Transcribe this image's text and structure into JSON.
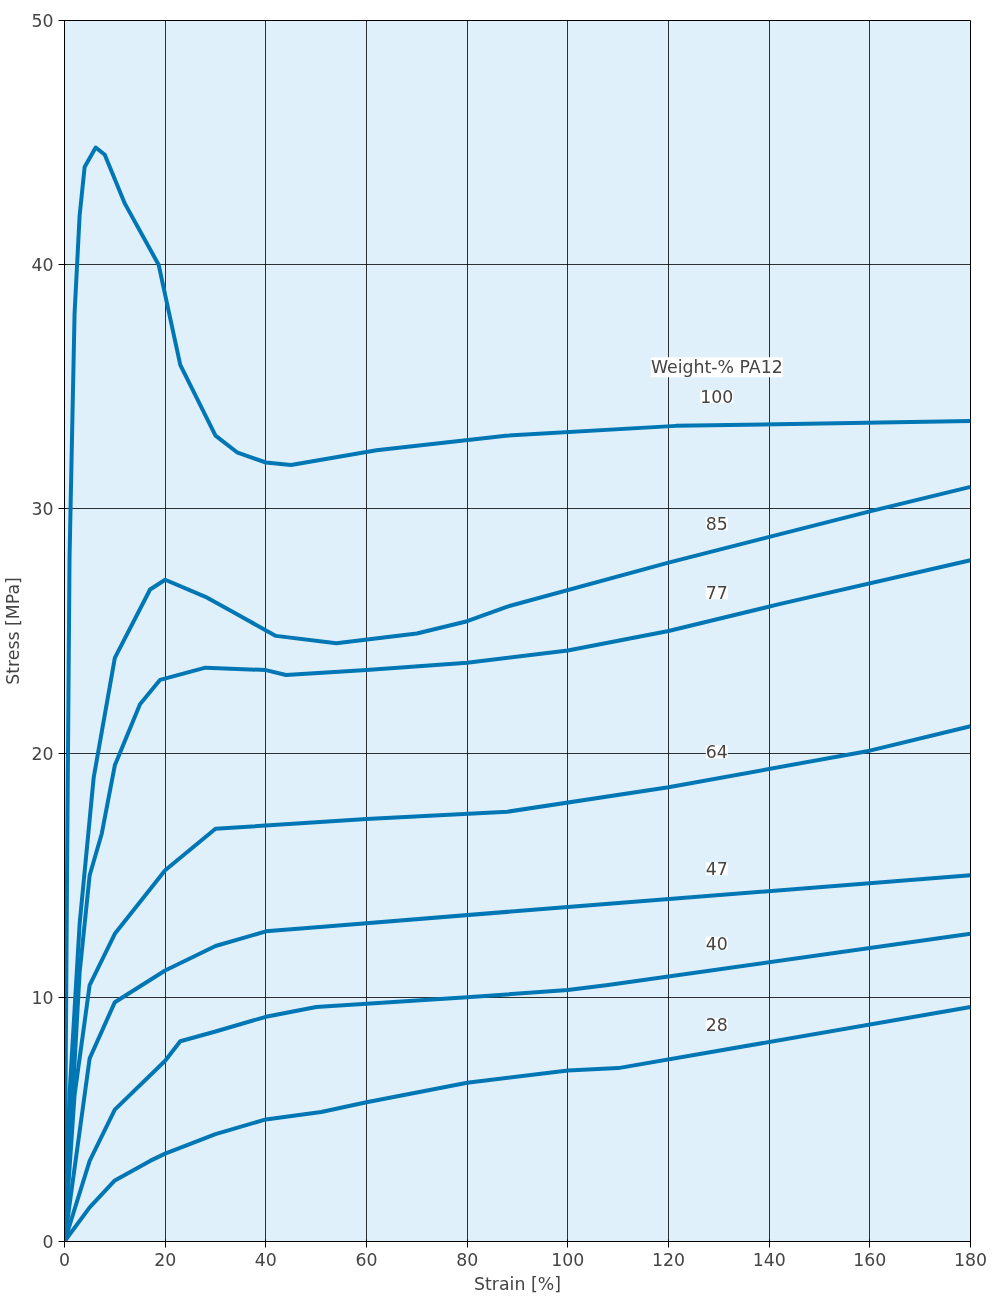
{
  "chart_data": {
    "type": "line",
    "xlabel": "Strain [%]",
    "ylabel": "Stress [MPa]",
    "legend_title": "Weight-% PA12",
    "xlim": [
      0,
      180
    ],
    "ylim": [
      0,
      50
    ],
    "xticks": [
      0,
      20,
      40,
      60,
      80,
      100,
      120,
      140,
      160,
      180
    ],
    "yticks": [
      0,
      10,
      20,
      30,
      40,
      50
    ],
    "grid": true,
    "line_style": "solid",
    "series": [
      {
        "name": "100",
        "color": "#0077b4",
        "x": [
          0,
          0.5,
          1,
          2,
          3,
          4,
          6.2,
          8,
          12,
          18.7,
          23,
          30,
          34.4,
          40,
          45,
          62,
          87.7,
          121.5,
          180
        ],
        "values": [
          0,
          15,
          28,
          38,
          42,
          44,
          44.8,
          44.5,
          42.5,
          40,
          35.9,
          33,
          32.3,
          31.9,
          31.8,
          32.4,
          33,
          33.4,
          33.6
        ]
      },
      {
        "name": "85",
        "color": "#0077b4",
        "x": [
          0,
          1,
          3,
          5.8,
          10,
          17,
          20,
          28,
          35,
          42,
          54,
          70,
          80,
          88,
          120,
          160,
          180
        ],
        "values": [
          0,
          6,
          13,
          19,
          23.9,
          26.7,
          27.1,
          26.4,
          25.6,
          24.8,
          24.5,
          24.9,
          25.4,
          26,
          27.8,
          29.9,
          30.9
        ]
      },
      {
        "name": "77",
        "color": "#0077b4",
        "x": [
          0,
          3,
          5,
          7.4,
          10,
          15,
          19,
          28,
          40,
          44,
          60,
          80,
          100,
          120,
          142,
          180
        ],
        "values": [
          0,
          11,
          15,
          16.7,
          19.5,
          22,
          23,
          23.5,
          23.4,
          23.2,
          23.4,
          23.7,
          24.2,
          25,
          26.1,
          27.9
        ]
      },
      {
        "name": "64",
        "color": "#0077b4",
        "x": [
          0,
          2,
          5,
          10,
          20,
          30,
          60,
          88,
          120,
          160,
          180
        ],
        "values": [
          0,
          6,
          10.5,
          12.6,
          15.2,
          16.9,
          17.3,
          17.6,
          18.6,
          20.1,
          21.1
        ]
      },
      {
        "name": "47",
        "color": "#0077b4",
        "x": [
          0,
          5,
          10,
          20,
          30,
          40,
          52,
          100,
          180
        ],
        "values": [
          0,
          7.5,
          9.8,
          11.1,
          12.1,
          12.7,
          12.9,
          13.7,
          15
        ]
      },
      {
        "name": "40",
        "color": "#0077b4",
        "x": [
          0,
          5,
          10,
          20,
          23,
          30,
          40,
          50,
          80,
          100,
          108,
          180
        ],
        "values": [
          0,
          3.3,
          5.4,
          7.4,
          8.2,
          8.6,
          9.2,
          9.6,
          10,
          10.3,
          10.5,
          12.6
        ]
      },
      {
        "name": "28",
        "color": "#0077b4",
        "x": [
          0,
          5,
          10,
          17,
          20,
          30,
          40,
          51,
          60,
          80,
          100,
          110,
          180
        ],
        "values": [
          0,
          1.4,
          2.5,
          3.3,
          3.6,
          4.4,
          5,
          5.3,
          5.7,
          6.5,
          7,
          7.1,
          9.6
        ]
      }
    ]
  }
}
